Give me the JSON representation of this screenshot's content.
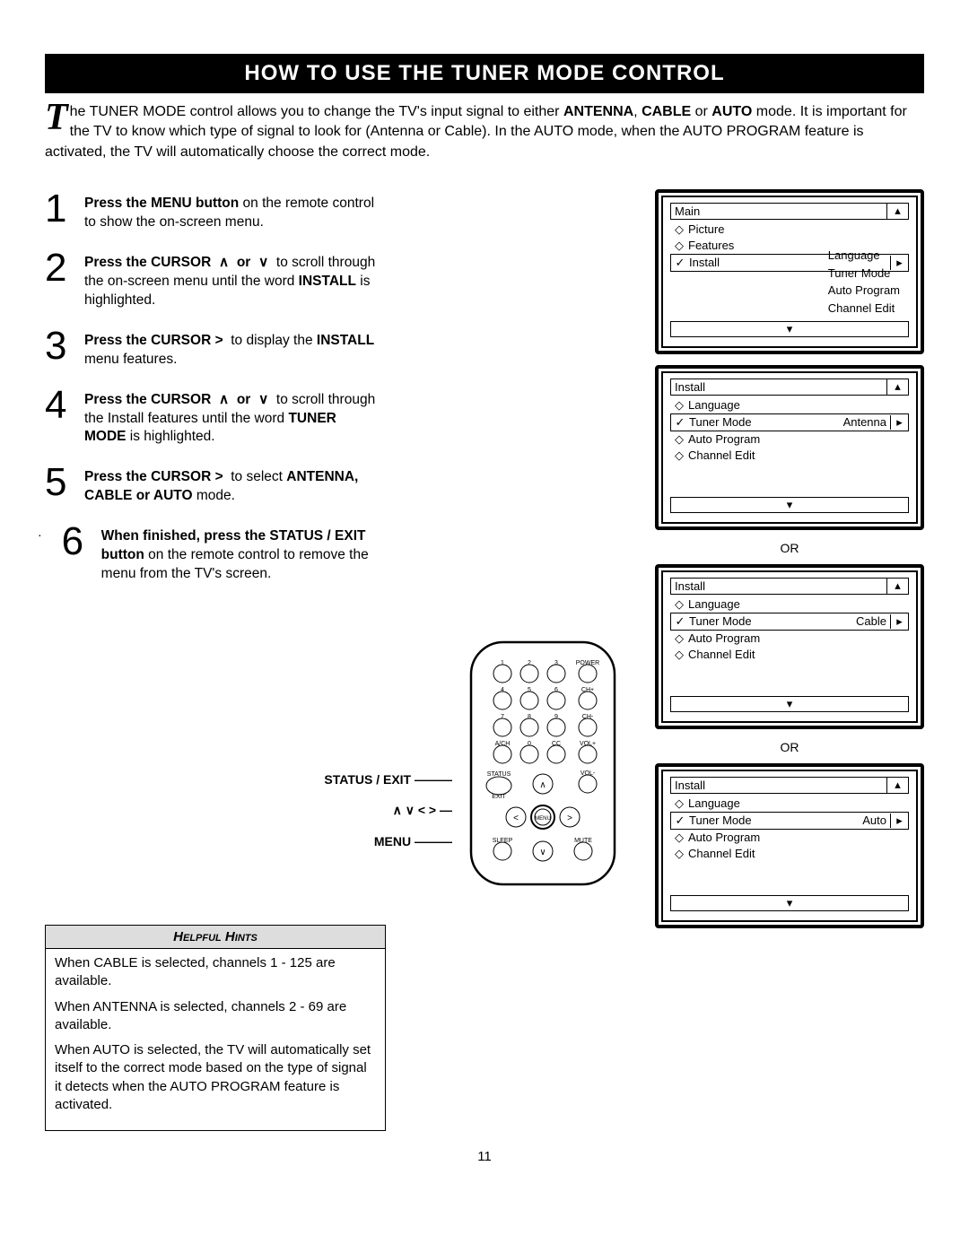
{
  "title": "HOW TO USE THE TUNER MODE CONTROL",
  "intro": {
    "dropcap": "T",
    "text_html": "he TUNER MODE control allows you to change the TV's input signal to either <b>ANTENNA</b>, <b>CABLE</b> or <b>AUTO</b> mode. It is important for the TV to know which type of signal to look for (Antenna or Cable).  In the AUTO mode, when the AUTO PROGRAM feature is activated, the TV will automatically choose the correct mode."
  },
  "steps": [
    {
      "n": "1",
      "html": "<b>Press the MENU button</b> on the remote control to show the on-screen menu."
    },
    {
      "n": "2",
      "html": "<b>Press the CURSOR &nbsp;∧&nbsp; or &nbsp;∨</b>&nbsp; to scroll through the on-screen menu until the word <b>INSTALL</b> is highlighted."
    },
    {
      "n": "3",
      "html": "<b>Press the CURSOR &gt;</b>&nbsp; to display the <b>INSTALL</b> menu features."
    },
    {
      "n": "4",
      "html": "<b>Press the CURSOR &nbsp;∧&nbsp; or &nbsp;∨</b>&nbsp; to scroll through the Install features until the word <b>TUNER MODE</b> is highlighted."
    },
    {
      "n": "5",
      "html": "<b>Press the CURSOR &gt;</b>&nbsp; to select <b>ANTENNA, CABLE or AUTO</b> mode."
    },
    {
      "n": "6",
      "html": "<b>When finished, press the STATUS / EXIT button</b> on the remote control to remove the menu from the TV's screen."
    }
  ],
  "remote_labels": {
    "status": "STATUS / EXIT",
    "cursors": "∧ ∨ < >",
    "menu": "MENU"
  },
  "hints": {
    "header": "Helpful Hints",
    "items": [
      "When CABLE is selected, channels 1 - 125 are available.",
      "When ANTENNA is selected, channels 2 - 69 are available.",
      "When AUTO is selected, the TV will automatically set itself to the correct mode based on the type of signal it detects when the AUTO PROGRAM feature is activated."
    ]
  },
  "osd_screens": {
    "main": {
      "title": "Main",
      "left": [
        "Picture",
        "Features",
        "Install"
      ],
      "selected_index": 2,
      "right": [
        "Language",
        "Tuner Mode",
        "Auto Program",
        "Channel Edit"
      ]
    },
    "install_variants": [
      {
        "value": "Antenna"
      },
      {
        "value": "Cable"
      },
      {
        "value": "Auto"
      }
    ],
    "install_items": [
      "Language",
      "Tuner Mode",
      "Auto Program",
      "Channel Edit"
    ],
    "install_selected_index": 1,
    "or": "OR"
  },
  "page": "11",
  "colors": {
    "bg": "#ffffff",
    "fg": "#000000",
    "hint_bg": "#dddddd"
  }
}
